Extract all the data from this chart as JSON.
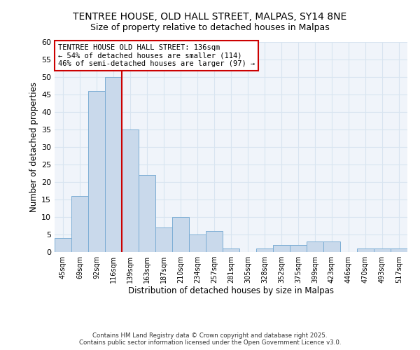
{
  "title_line1": "TENTREE HOUSE, OLD HALL STREET, MALPAS, SY14 8NE",
  "title_line2": "Size of property relative to detached houses in Malpas",
  "xlabel": "Distribution of detached houses by size in Malpas",
  "ylabel": "Number of detached properties",
  "bar_labels": [
    "45sqm",
    "69sqm",
    "92sqm",
    "116sqm",
    "139sqm",
    "163sqm",
    "187sqm",
    "210sqm",
    "234sqm",
    "257sqm",
    "281sqm",
    "305sqm",
    "328sqm",
    "352sqm",
    "375sqm",
    "399sqm",
    "423sqm",
    "446sqm",
    "470sqm",
    "493sqm",
    "517sqm"
  ],
  "bar_values": [
    4,
    16,
    46,
    50,
    35,
    22,
    7,
    10,
    5,
    6,
    1,
    0,
    1,
    2,
    2,
    3,
    3,
    0,
    1,
    1,
    1
  ],
  "bar_color": "#c9d9eb",
  "bar_edge_color": "#7badd4",
  "ylim": [
    0,
    60
  ],
  "yticks": [
    0,
    5,
    10,
    15,
    20,
    25,
    30,
    35,
    40,
    45,
    50,
    55,
    60
  ],
  "annotation_text": "TENTREE HOUSE OLD HALL STREET: 136sqm\n← 54% of detached houses are smaller (114)\n46% of semi-detached houses are larger (97) →",
  "annotation_box_color": "#ffffff",
  "annotation_box_edge": "#cc0000",
  "footer_text": "Contains HM Land Registry data © Crown copyright and database right 2025.\nContains public sector information licensed under the Open Government Licence v3.0.",
  "background_color": "#ffffff",
  "plot_background": "#f0f4fa",
  "grid_color": "#d8e4f0",
  "red_line_color": "#cc0000",
  "title1_fontsize": 10,
  "title2_fontsize": 9
}
